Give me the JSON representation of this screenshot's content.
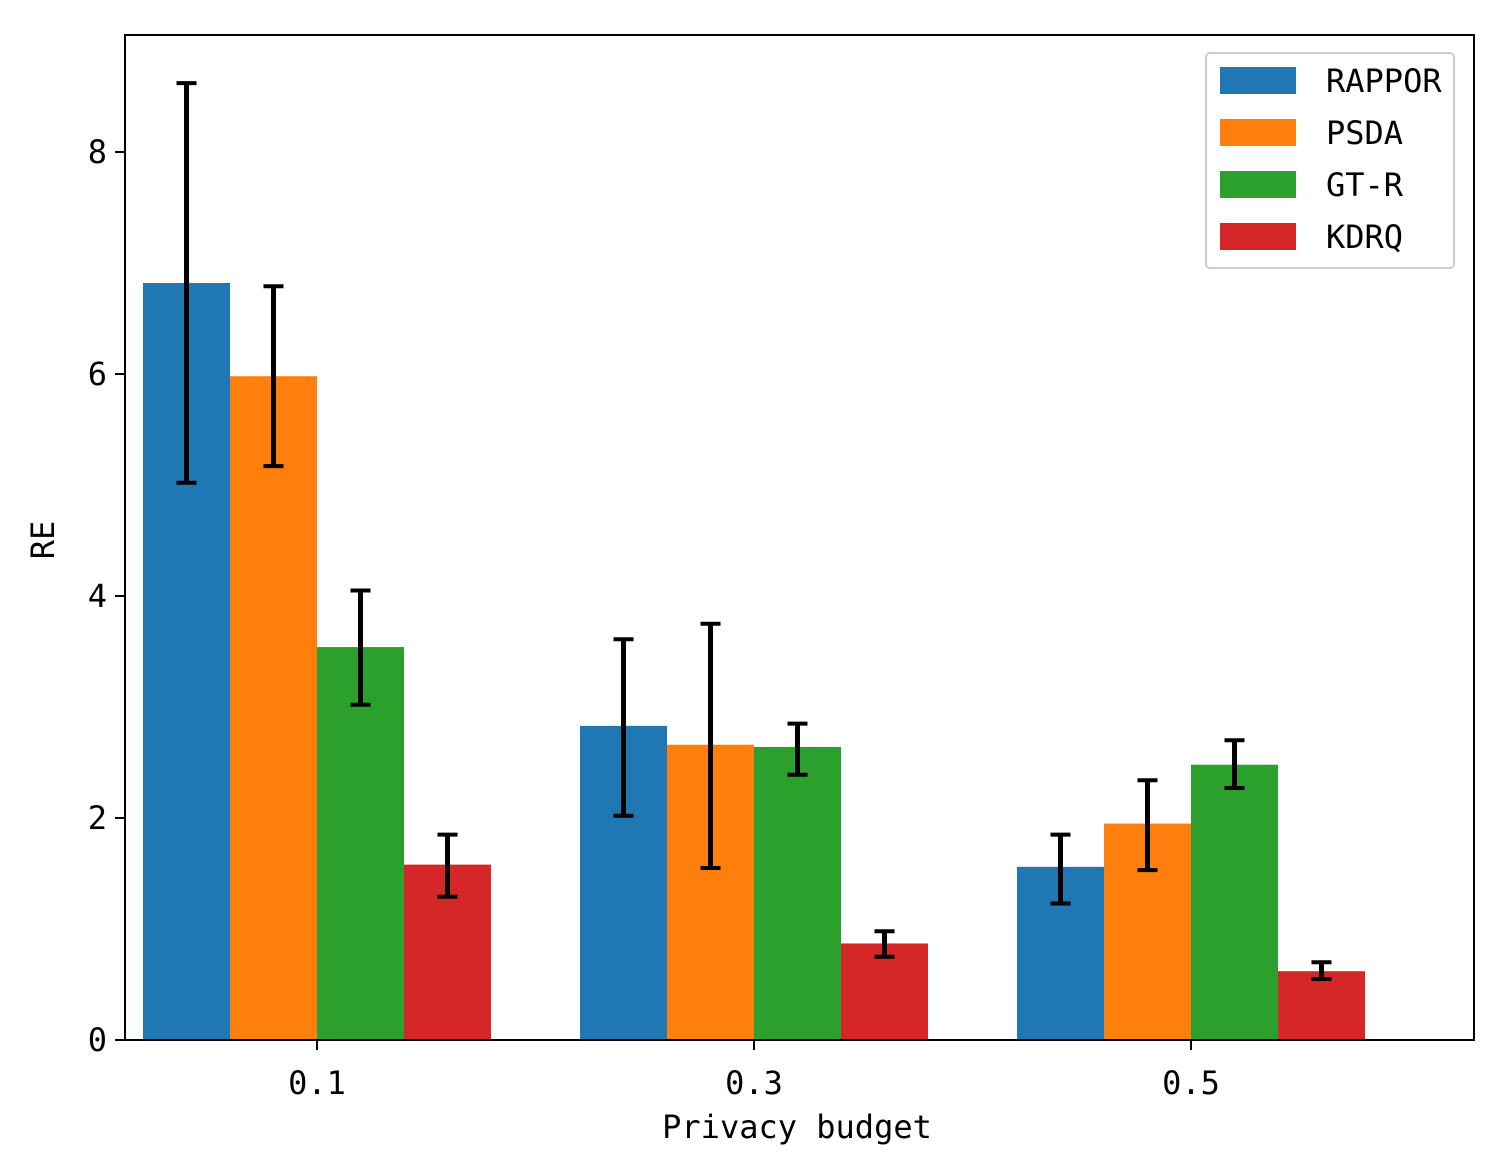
{
  "chart_data": {
    "type": "bar",
    "title": "",
    "xlabel": "Privacy budget",
    "ylabel": "RE",
    "categories": [
      "0.1",
      "0.3",
      "0.5"
    ],
    "ylim": [
      0,
      9
    ],
    "yticks": [
      0,
      2,
      4,
      6,
      8
    ],
    "legend_position": "top-right",
    "series": [
      {
        "name": "RAPPOR",
        "color": "#1f77b4",
        "values": [
          6.82,
          2.83,
          1.56
        ],
        "err_low": [
          5.02,
          2.02,
          1.23
        ],
        "err_high": [
          8.62,
          3.61,
          1.85
        ]
      },
      {
        "name": "PSDA",
        "color": "#ff7f0e",
        "values": [
          5.98,
          2.66,
          1.95
        ],
        "err_low": [
          5.17,
          1.55,
          1.53
        ],
        "err_high": [
          6.79,
          3.75,
          2.34
        ]
      },
      {
        "name": "GT-R",
        "color": "#2ca02c",
        "values": [
          3.54,
          2.64,
          2.48
        ],
        "err_low": [
          3.02,
          2.39,
          2.27
        ],
        "err_high": [
          4.05,
          2.85,
          2.7
        ]
      },
      {
        "name": "KDRQ",
        "color": "#d62728",
        "values": [
          1.58,
          0.87,
          0.62
        ],
        "err_low": [
          1.29,
          0.75,
          0.55
        ],
        "err_high": [
          1.85,
          0.98,
          0.7
        ]
      }
    ]
  }
}
